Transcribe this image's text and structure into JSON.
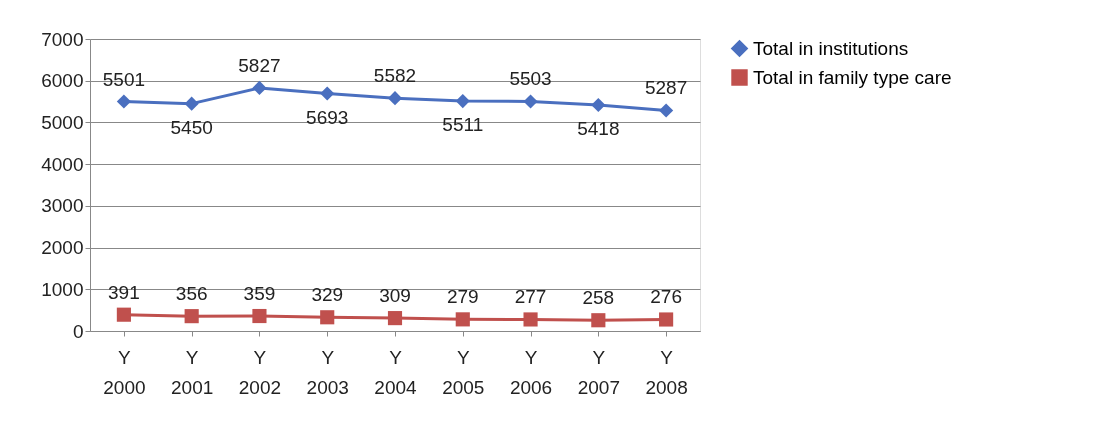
{
  "chart_data": {
    "type": "line",
    "categories": [
      "Y 2000",
      "Y 2001",
      "Y 2002",
      "Y 2003",
      "Y 2004",
      "Y 2005",
      "Y 2006",
      "Y 2007",
      "Y 2008"
    ],
    "series": [
      {
        "name": "Total in institutions",
        "color": "#4a6fbf",
        "marker": "diamond",
        "values": [
          5501,
          5450,
          5827,
          5693,
          5582,
          5511,
          5503,
          5418,
          5287
        ]
      },
      {
        "name": "Total in family type care",
        "color": "#c0504d",
        "marker": "square",
        "values": [
          391,
          356,
          359,
          329,
          309,
          279,
          277,
          258,
          276
        ]
      }
    ],
    "ylim": [
      0,
      7000
    ],
    "yticks": [
      0,
      1000,
      2000,
      3000,
      4000,
      5000,
      6000,
      7000
    ],
    "grid": "y",
    "legend": "right",
    "data_labels": true
  }
}
